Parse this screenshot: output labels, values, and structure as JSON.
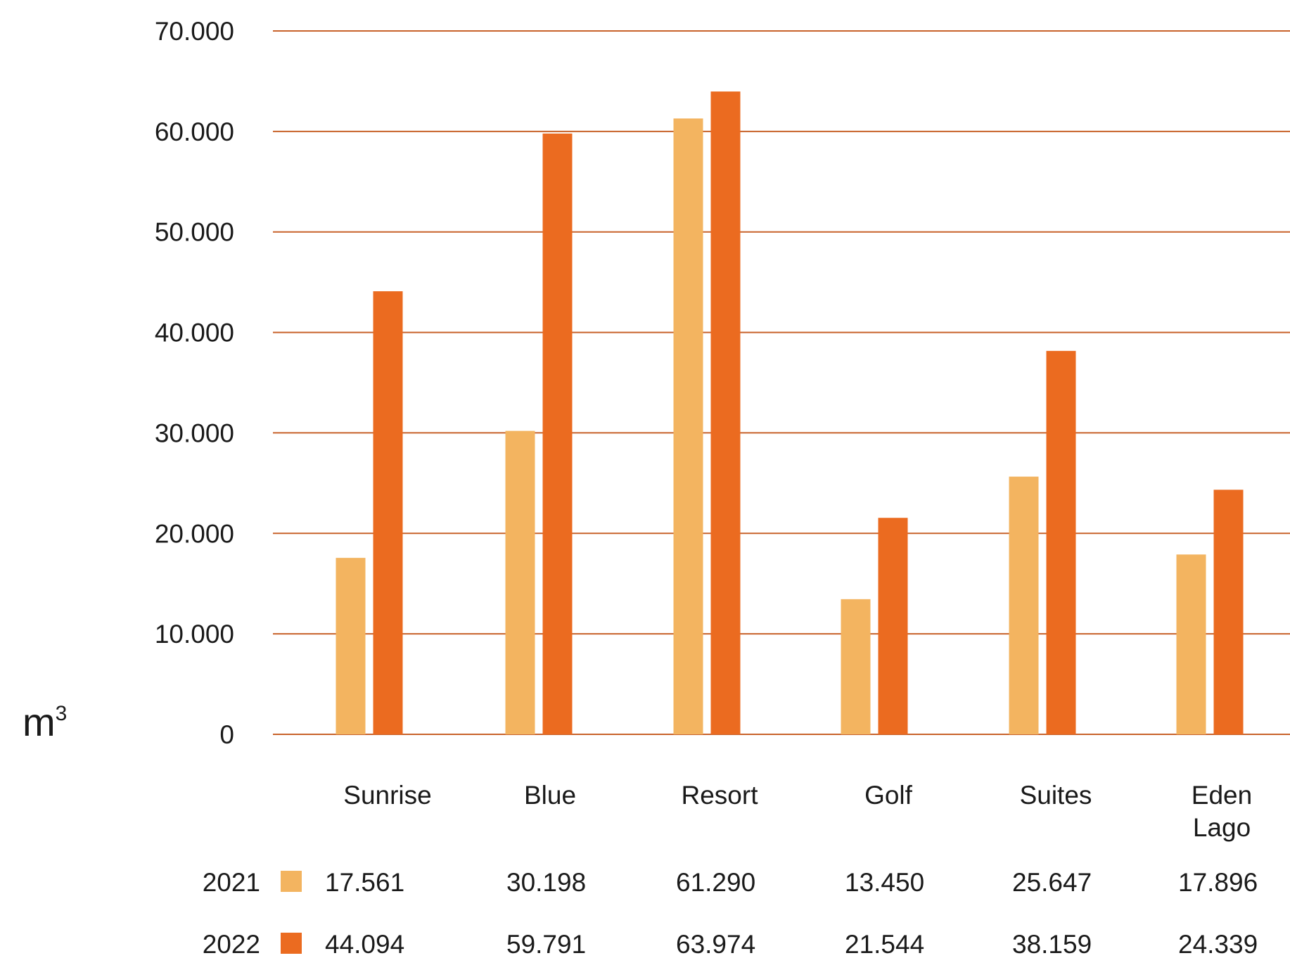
{
  "colors": {
    "series_2021": "#F3B460",
    "series_2022": "#EB6B20",
    "gridline": "#C8622A",
    "text": "#1a1a1a"
  },
  "chart_data": {
    "type": "bar",
    "ylabel": "m",
    "ylabel_superscript": "3",
    "ylim": [
      0,
      70000
    ],
    "yticks": [
      0,
      10000,
      20000,
      30000,
      40000,
      50000,
      60000,
      70000
    ],
    "ytick_labels": [
      "0",
      "10.000",
      "20.000",
      "30.000",
      "40.000",
      "50.000",
      "60.000",
      "70.000"
    ],
    "grid": true,
    "legend_placement": "bottom (table rows)",
    "categories": [
      [
        "Sunrise"
      ],
      [
        "Blue"
      ],
      [
        "Resort"
      ],
      [
        "Golf"
      ],
      [
        "Suites"
      ],
      [
        "Eden",
        "Lago"
      ]
    ],
    "series": [
      {
        "name": "2021",
        "values": [
          17561,
          30198,
          61290,
          13450,
          25647,
          17896
        ],
        "labels": [
          "17.561",
          "30.198",
          "61.290",
          "13.450",
          "25.647",
          "17.896"
        ]
      },
      {
        "name": "2022",
        "values": [
          44094,
          59791,
          63974,
          21544,
          38159,
          24339
        ],
        "labels": [
          "44.094",
          "59.791",
          "63.974",
          "21.544",
          "38.159",
          "24.339"
        ]
      }
    ]
  }
}
